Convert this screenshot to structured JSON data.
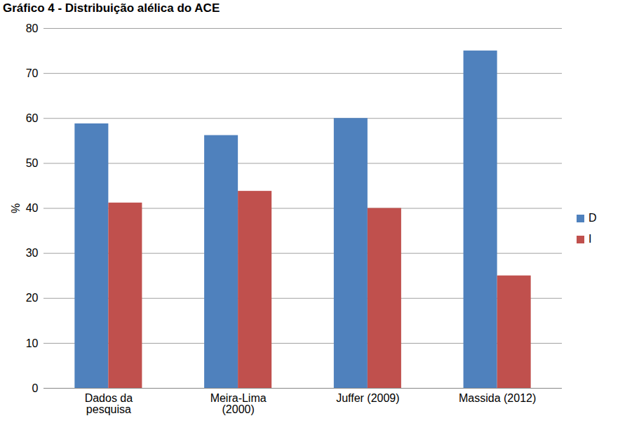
{
  "chart_data": {
    "type": "bar",
    "title": "Gráfico 4 - Distribuição alélica do ACE",
    "categories": [
      "Dados da pesquisa",
      "Meira-Lima (2000)",
      "Juffer (2009)",
      "Massida (2012)"
    ],
    "series": [
      {
        "name": "D",
        "color": "#4f81bd",
        "values": [
          58.8,
          56.2,
          60,
          75
        ]
      },
      {
        "name": "I",
        "color": "#c0504d",
        "values": [
          41.2,
          43.8,
          40,
          25
        ]
      }
    ],
    "y_label": "%",
    "ylim": [
      0,
      80
    ],
    "yticks": [
      0,
      10,
      20,
      30,
      40,
      50,
      60,
      70,
      80
    ],
    "grid": true,
    "legend": "right"
  }
}
